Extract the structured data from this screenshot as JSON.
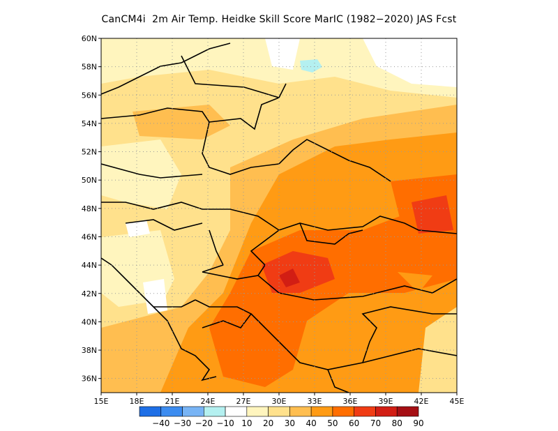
{
  "title": "CanCM4i  2m Air Temp. Heidke Skill Score MarIC (1982−2020) JAS Fcst",
  "map": {
    "lon_range": [
      15,
      45
    ],
    "lat_range": [
      35,
      60
    ],
    "lon_ticks": [
      "15E",
      "18E",
      "21E",
      "24E",
      "27E",
      "30E",
      "33E",
      "36E",
      "39E",
      "42E",
      "45E"
    ],
    "lat_ticks": [
      "36N",
      "38N",
      "40N",
      "42N",
      "44N",
      "46N",
      "48N",
      "50N",
      "52N",
      "54N",
      "56N",
      "58N",
      "60N"
    ],
    "gridlines": "dotted"
  },
  "colorbar": {
    "labels": [
      "−40",
      "−30",
      "−20",
      "−10",
      "10",
      "20",
      "30",
      "40",
      "50",
      "60",
      "70",
      "80",
      "90"
    ],
    "colors": [
      "#1e6fe6",
      "#3c8cf0",
      "#78b4f5",
      "#b4f0f0",
      "#ffffff",
      "#fff5be",
      "#ffe18c",
      "#ffbe50",
      "#ff9b14",
      "#ff6e00",
      "#f03c14",
      "#d21e14",
      "#a50f14"
    ]
  }
}
